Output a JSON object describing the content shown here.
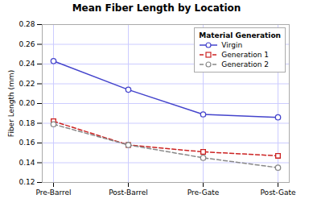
{
  "chart_data": {
    "type": "line",
    "title": "Mean Fiber Length by Location",
    "ylabel": "Fiber Length (mm)",
    "categories": [
      "Pre-Barrel",
      "Post-Barrel",
      "Pre-Gate",
      "Post-Gate"
    ],
    "series": [
      {
        "name": "Virgin",
        "color": "#4444cc",
        "values": [
          0.243,
          0.214,
          0.189,
          0.186
        ],
        "marker": "circle",
        "line_style": "solid"
      },
      {
        "name": "Generation 1",
        "color": "#cc2222",
        "values": [
          0.182,
          0.158,
          0.151,
          0.147
        ],
        "marker": "square",
        "line_style": "dashed"
      },
      {
        "name": "Generation 2",
        "color": "#888888",
        "values": [
          0.179,
          0.158,
          0.145,
          0.135
        ],
        "marker": "circle",
        "line_style": "dashed"
      }
    ],
    "ylim": [
      0.12,
      0.28
    ],
    "yticks": [
      0.12,
      0.14,
      0.16,
      0.18,
      {
        "value": 0.2,
        "label": "0.20"
      },
      0.22,
      0.24,
      0.26,
      0.28
    ],
    "grid": true,
    "legend": "upper right",
    "legend_title": "Material Generation"
  }
}
